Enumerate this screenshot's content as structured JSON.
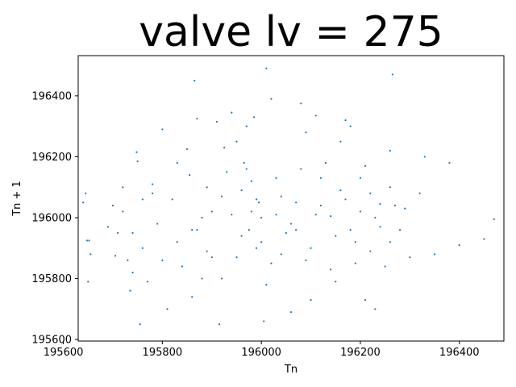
{
  "chart_data": {
    "type": "scatter",
    "title": "valve lv = 275",
    "xlabel": "Tn",
    "ylabel": "Tn + 1",
    "xlim": [
      195630,
      196490
    ],
    "ylim": [
      195595,
      196532
    ],
    "x_ticks": [
      195600,
      195800,
      196000,
      196200,
      196400
    ],
    "y_ticks": [
      195600,
      195800,
      196000,
      196200,
      196400
    ],
    "x_tick_labels": [
      "195600",
      "195800",
      "196000",
      "196200",
      "196400"
    ],
    "y_tick_labels": [
      "195600",
      "195800",
      "196000",
      "196200",
      "196400"
    ],
    "grid": false,
    "legend": "none",
    "color": "#1f77b4",
    "series": [
      {
        "points": [
          [
            195640,
            196050
          ],
          [
            195645,
            196080
          ],
          [
            195648,
            195925
          ],
          [
            195652,
            195925
          ],
          [
            195655,
            195880
          ],
          [
            195650,
            195790
          ],
          [
            195690,
            195970
          ],
          [
            195705,
            195875
          ],
          [
            195710,
            195950
          ],
          [
            195720,
            196100
          ],
          [
            195730,
            195860
          ],
          [
            195735,
            195760
          ],
          [
            195740,
            195950
          ],
          [
            195748,
            196215
          ],
          [
            195750,
            196185
          ],
          [
            195755,
            195650
          ],
          [
            195760,
            196060
          ],
          [
            195770,
            195790
          ],
          [
            195780,
            196110
          ],
          [
            195800,
            196290
          ],
          [
            195810,
            195700
          ],
          [
            195830,
            195920
          ],
          [
            195850,
            196225
          ],
          [
            195855,
            196140
          ],
          [
            195860,
            195740
          ],
          [
            195865,
            196450
          ],
          [
            195870,
            196325
          ],
          [
            195880,
            196000
          ],
          [
            195890,
            195890
          ],
          [
            195900,
            195870
          ],
          [
            195910,
            196315
          ],
          [
            195915,
            195650
          ],
          [
            195925,
            196230
          ],
          [
            195930,
            196150
          ],
          [
            195940,
            196345
          ],
          [
            195950,
            196250
          ],
          [
            195960,
            196090
          ],
          [
            195965,
            196180
          ],
          [
            195970,
            196300
          ],
          [
            195975,
            195960
          ],
          [
            195980,
            196020
          ],
          [
            195985,
            196330
          ],
          [
            195990,
            195900
          ],
          [
            195995,
            196050
          ],
          [
            196000,
            195920
          ],
          [
            196005,
            195660
          ],
          [
            196010,
            196490
          ],
          [
            196020,
            196390
          ],
          [
            196030,
            196010
          ],
          [
            196040,
            195880
          ],
          [
            196060,
            195690
          ],
          [
            196070,
            195960
          ],
          [
            196080,
            196375
          ],
          [
            196090,
            196280
          ],
          [
            196100,
            195730
          ],
          [
            196110,
            196335
          ],
          [
            196120,
            196130
          ],
          [
            196140,
            196005
          ],
          [
            196150,
            195790
          ],
          [
            196160,
            196250
          ],
          [
            196170,
            196320
          ],
          [
            196180,
            196300
          ],
          [
            196190,
            195920
          ],
          [
            196200,
            196130
          ],
          [
            196210,
            195730
          ],
          [
            196220,
            196080
          ],
          [
            196230,
            195700
          ],
          [
            196240,
            196045
          ],
          [
            196250,
            195840
          ],
          [
            196260,
            196220
          ],
          [
            196265,
            196470
          ],
          [
            196270,
            196040
          ],
          [
            196300,
            195870
          ],
          [
            196320,
            196080
          ],
          [
            196330,
            196200
          ],
          [
            196350,
            195880
          ],
          [
            196380,
            196180
          ],
          [
            196400,
            195910
          ],
          [
            196450,
            195930
          ],
          [
            196470,
            195995
          ],
          [
            195720,
            196020
          ],
          [
            195760,
            195900
          ],
          [
            195790,
            195980
          ],
          [
            195820,
            196060
          ],
          [
            195840,
            195840
          ],
          [
            195870,
            195960
          ],
          [
            195890,
            196100
          ],
          [
            195920,
            195800
          ],
          [
            195940,
            196010
          ],
          [
            195960,
            195940
          ],
          [
            195980,
            196120
          ],
          [
            196000,
            196000
          ],
          [
            196020,
            195850
          ],
          [
            196040,
            196070
          ],
          [
            196060,
            195980
          ],
          [
            196080,
            196160
          ],
          [
            196100,
            195900
          ],
          [
            196120,
            196040
          ],
          [
            196140,
            195830
          ],
          [
            196160,
            196090
          ],
          [
            196180,
            195960
          ],
          [
            196200,
            196020
          ],
          [
            196220,
            195890
          ],
          [
            196240,
            195970
          ],
          [
            196260,
            196100
          ],
          [
            196280,
            195960
          ],
          [
            195700,
            196040
          ],
          [
            195740,
            195820
          ],
          [
            195780,
            196080
          ],
          [
            195800,
            195860
          ],
          [
            195830,
            196180
          ],
          [
            195860,
            195960
          ],
          [
            195880,
            195800
          ],
          [
            195900,
            196020
          ],
          [
            195920,
            196070
          ],
          [
            195950,
            195870
          ],
          [
            195970,
            196160
          ],
          [
            195990,
            196060
          ],
          [
            196010,
            195780
          ],
          [
            196030,
            196130
          ],
          [
            196050,
            195950
          ],
          [
            196070,
            196050
          ],
          [
            196090,
            195860
          ],
          [
            196110,
            196010
          ],
          [
            196130,
            196180
          ],
          [
            196150,
            195940
          ],
          [
            196170,
            196060
          ],
          [
            196190,
            195850
          ],
          [
            196210,
            196170
          ],
          [
            196230,
            196000
          ],
          [
            196260,
            195920
          ],
          [
            196290,
            196030
          ]
        ]
      }
    ]
  }
}
